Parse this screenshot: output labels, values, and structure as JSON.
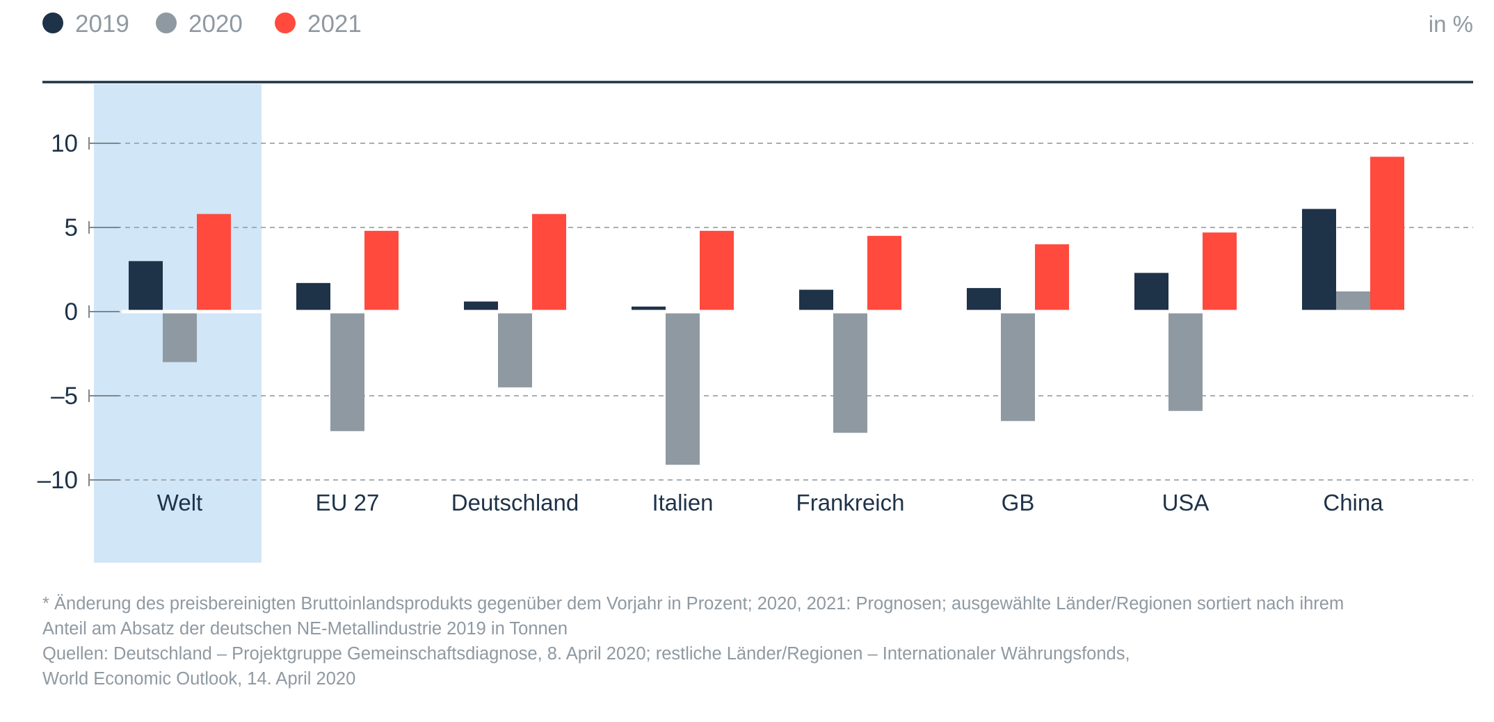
{
  "unit_label": "in %",
  "colors": {
    "2019": "#1e3248",
    "2020": "#8f99a1",
    "2021": "#ff4a3d",
    "highlight": "#d1e6f7",
    "axis": "#1e3248"
  },
  "chart_data": {
    "type": "bar",
    "categories": [
      "Welt",
      "EU 27",
      "Deutschland",
      "Italien",
      "Frankreich",
      "GB",
      "USA",
      "China"
    ],
    "highlighted_category": "Welt",
    "series": [
      {
        "name": "2019",
        "values": [
          3.0,
          1.7,
          0.6,
          0.3,
          1.3,
          1.4,
          2.3,
          6.1
        ]
      },
      {
        "name": "2020",
        "values": [
          -3.0,
          -7.1,
          -4.5,
          -9.1,
          -7.2,
          -6.5,
          -5.9,
          1.2
        ]
      },
      {
        "name": "2021",
        "values": [
          5.8,
          4.8,
          5.8,
          4.8,
          4.5,
          4.0,
          4.7,
          9.2
        ]
      }
    ],
    "ylim": [
      -10,
      10
    ],
    "yticks": [
      10,
      5,
      0,
      -5,
      -10
    ],
    "ytick_labels": [
      "10",
      "5",
      "0",
      "–5",
      "–10"
    ],
    "grid": true,
    "legend_position": "top-left"
  },
  "footnote": {
    "lines": [
      "* Änderung des preisbereinigten Bruttoinlandsprodukts gegenüber dem Vorjahr in Prozent; 2020, 2021: Prognosen; ausgewählte Länder/Regionen sortiert nach ihrem",
      "Anteil am Absatz der deutschen NE-Metallindustrie 2019 in Tonnen",
      "Quellen: Deutschland – Projektgruppe Gemeinschaftsdiagnose, 8. April 2020; restliche Länder/Regionen – Internationaler Währungsfonds,",
      "World Economic Outlook, 14. April 2020"
    ]
  }
}
